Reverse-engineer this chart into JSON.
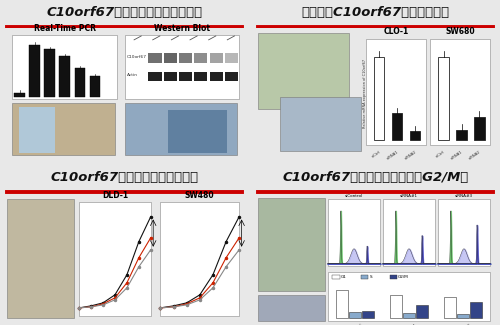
{
  "background_color": "#e8e8e8",
  "panel_bg": "#f5f5f5",
  "title_bg": "#ffffff",
  "title_underline_color": "#cc0000",
  "border_color": "#999999",
  "panels": [
    {
      "title": "C10orf67在结直肠癌细胞中高表达",
      "row": 0,
      "col": 0
    },
    {
      "title": "构建敲低C10orf67表达的细胞系",
      "row": 0,
      "col": 1
    },
    {
      "title": "C10orf67敲低表达抑制细胞增殖",
      "row": 1,
      "col": 0
    },
    {
      "title": "C10orf67敲低表达细胞阻滞在G2/M期",
      "row": 1,
      "col": 1
    }
  ],
  "pcr_vals": [
    0.08,
    1.0,
    0.92,
    0.78,
    0.55,
    0.4
  ],
  "pcr_colors": [
    "#111111",
    "#111111",
    "#111111",
    "#111111",
    "#111111",
    "#111111"
  ],
  "clo1_vals": [
    1.0,
    0.32,
    0.1
  ],
  "clo1_colors": [
    "#ffffff",
    "#111111",
    "#111111"
  ],
  "sw680_vals": [
    1.02,
    0.12,
    0.28
  ],
  "sw680_colors": [
    "#ffffff",
    "#111111",
    "#111111"
  ],
  "line_colors": [
    "#111111",
    "#cc2200",
    "#888888"
  ],
  "flow_g1_color": "#44bb44",
  "flow_s_color": "#aaaaee",
  "flow_g2_color": "#2222bb",
  "bar_g1_color": "#ffffff",
  "bar_s_color": "#88aacc",
  "bar_g2_color": "#334488",
  "title_fontsize": 9.5,
  "subtitle_fontsize": 5.5
}
